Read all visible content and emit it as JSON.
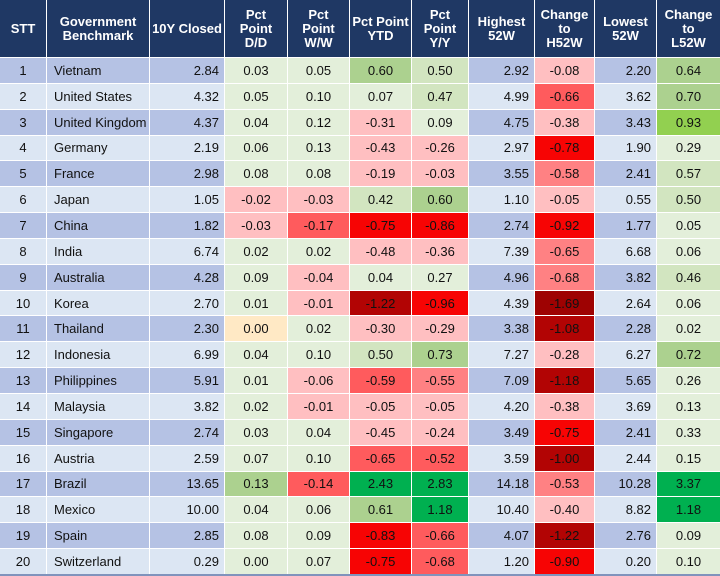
{
  "palette": {
    "header_bg": "#1F3864",
    "header_text": "#FFFFFF",
    "row_odd": "#B5C2E4",
    "row_even": "#DCE6F3",
    "grid": "#FFFFFF",
    "g0": "#E3EFDA",
    "g1": "#D2E5C0",
    "g2": "#ACD18F",
    "g3": "#92D050",
    "g4": "#00B050",
    "yl": "#FFE9C5",
    "r0": "#FFBFC1",
    "r1": "#FF8183",
    "r2": "#FF5B5D",
    "r3": "#F70404",
    "r4": "#B20404",
    "r5": "#9E0202"
  },
  "table": {
    "columns": [
      {
        "key": "stt",
        "label": "STT",
        "width": 47,
        "align": "ac",
        "stripe": true
      },
      {
        "key": "name",
        "label": "Government\nBenchmark",
        "width": 103,
        "align": "al",
        "stripe": true
      },
      {
        "key": "close",
        "label": "10Y Closed",
        "width": 75,
        "align": "ar",
        "stripe": true
      },
      {
        "key": "dd",
        "label": "Pct\nPoint\nD/D",
        "width": 63,
        "align": "ac",
        "stripe": false
      },
      {
        "key": "ww",
        "label": "Pct\nPoint\nW/W",
        "width": 62,
        "align": "ac",
        "stripe": false
      },
      {
        "key": "ytd",
        "label": "Pct Point\nYTD",
        "width": 62,
        "align": "ac",
        "stripe": false
      },
      {
        "key": "yy",
        "label": "Pct\nPoint\nY/Y",
        "width": 57,
        "align": "ac",
        "stripe": false
      },
      {
        "key": "high",
        "label": "Highest\n52W",
        "width": 66,
        "align": "ar",
        "stripe": true
      },
      {
        "key": "h52",
        "label": "Change\nto\nH52W",
        "width": 60,
        "align": "ac",
        "stripe": false
      },
      {
        "key": "low",
        "label": "Lowest\n52W",
        "width": 62,
        "align": "ar",
        "stripe": true
      },
      {
        "key": "l52",
        "label": "Change\nto\nL52W",
        "width": 63,
        "align": "ac",
        "stripe": false
      }
    ],
    "rows": [
      {
        "stt": "1",
        "name": "Vietnam",
        "close": "2.84",
        "dd": "0.03",
        "ww": "0.05",
        "ytd": "0.60",
        "yy": "0.50",
        "high": "2.92",
        "h52": "-0.08",
        "low": "2.20",
        "l52": "0.64",
        "colors": {
          "dd": "g0",
          "ww": "g0",
          "ytd": "g2",
          "yy": "g1",
          "h52": "r0",
          "l52": "g2"
        }
      },
      {
        "stt": "2",
        "name": "United States",
        "close": "4.32",
        "dd": "0.05",
        "ww": "0.10",
        "ytd": "0.07",
        "yy": "0.47",
        "high": "4.99",
        "h52": "-0.66",
        "low": "3.62",
        "l52": "0.70",
        "colors": {
          "dd": "g0",
          "ww": "g0",
          "ytd": "g0",
          "yy": "g1",
          "h52": "r2",
          "l52": "g2"
        }
      },
      {
        "stt": "3",
        "name": "United Kingdom",
        "close": "4.37",
        "dd": "0.04",
        "ww": "0.12",
        "ytd": "-0.31",
        "yy": "0.09",
        "high": "4.75",
        "h52": "-0.38",
        "low": "3.43",
        "l52": "0.93",
        "colors": {
          "dd": "g0",
          "ww": "g0",
          "ytd": "r0",
          "yy": "g0",
          "h52": "r0",
          "l52": "g3"
        }
      },
      {
        "stt": "4",
        "name": "Germany",
        "close": "2.19",
        "dd": "0.06",
        "ww": "0.13",
        "ytd": "-0.43",
        "yy": "-0.26",
        "high": "2.97",
        "h52": "-0.78",
        "low": "1.90",
        "l52": "0.29",
        "colors": {
          "dd": "g0",
          "ww": "g0",
          "ytd": "r0",
          "yy": "r0",
          "h52": "r3",
          "l52": "g0"
        }
      },
      {
        "stt": "5",
        "name": "France",
        "close": "2.98",
        "dd": "0.08",
        "ww": "0.08",
        "ytd": "-0.19",
        "yy": "-0.03",
        "high": "3.55",
        "h52": "-0.58",
        "low": "2.41",
        "l52": "0.57",
        "colors": {
          "dd": "g0",
          "ww": "g0",
          "ytd": "r0",
          "yy": "r0",
          "h52": "r1",
          "l52": "g1"
        }
      },
      {
        "stt": "6",
        "name": "Japan",
        "close": "1.05",
        "dd": "-0.02",
        "ww": "-0.03",
        "ytd": "0.42",
        "yy": "0.60",
        "high": "1.10",
        "h52": "-0.05",
        "low": "0.55",
        "l52": "0.50",
        "colors": {
          "dd": "r0",
          "ww": "r0",
          "ytd": "g1",
          "yy": "g2",
          "h52": "r0",
          "l52": "g1"
        }
      },
      {
        "stt": "7",
        "name": "China",
        "close": "1.82",
        "dd": "-0.03",
        "ww": "-0.17",
        "ytd": "-0.75",
        "yy": "-0.86",
        "high": "2.74",
        "h52": "-0.92",
        "low": "1.77",
        "l52": "0.05",
        "colors": {
          "dd": "r0",
          "ww": "r2",
          "ytd": "r3",
          "yy": "r3",
          "h52": "r3",
          "l52": "g0"
        }
      },
      {
        "stt": "8",
        "name": "India",
        "close": "6.74",
        "dd": "0.02",
        "ww": "0.02",
        "ytd": "-0.48",
        "yy": "-0.36",
        "high": "7.39",
        "h52": "-0.65",
        "low": "6.68",
        "l52": "0.06",
        "colors": {
          "dd": "g0",
          "ww": "g0",
          "ytd": "r0",
          "yy": "r0",
          "h52": "r1",
          "l52": "g0"
        }
      },
      {
        "stt": "9",
        "name": "Australia",
        "close": "4.28",
        "dd": "0.09",
        "ww": "-0.04",
        "ytd": "0.04",
        "yy": "0.27",
        "high": "4.96",
        "h52": "-0.68",
        "low": "3.82",
        "l52": "0.46",
        "colors": {
          "dd": "g0",
          "ww": "r0",
          "ytd": "g0",
          "yy": "g0",
          "h52": "r1",
          "l52": "g1"
        }
      },
      {
        "stt": "10",
        "name": "Korea",
        "close": "2.70",
        "dd": "0.01",
        "ww": "-0.01",
        "ytd": "-1.22",
        "yy": "-0.96",
        "high": "4.39",
        "h52": "-1.69",
        "low": "2.64",
        "l52": "0.06",
        "colors": {
          "dd": "g0",
          "ww": "r0",
          "ytd": "r4",
          "yy": "r3",
          "h52": "r5",
          "l52": "g0"
        }
      },
      {
        "stt": "11",
        "name": "Thailand",
        "close": "2.30",
        "dd": "0.00",
        "ww": "0.02",
        "ytd": "-0.30",
        "yy": "-0.29",
        "high": "3.38",
        "h52": "-1.08",
        "low": "2.28",
        "l52": "0.02",
        "colors": {
          "dd": "yl",
          "ww": "g0",
          "ytd": "r0",
          "yy": "r0",
          "h52": "r4",
          "l52": "g0"
        }
      },
      {
        "stt": "12",
        "name": "Indonesia",
        "close": "6.99",
        "dd": "0.04",
        "ww": "0.10",
        "ytd": "0.50",
        "yy": "0.73",
        "high": "7.27",
        "h52": "-0.28",
        "low": "6.27",
        "l52": "0.72",
        "colors": {
          "dd": "g0",
          "ww": "g0",
          "ytd": "g1",
          "yy": "g2",
          "h52": "r0",
          "l52": "g2"
        }
      },
      {
        "stt": "13",
        "name": "Philippines",
        "close": "5.91",
        "dd": "0.01",
        "ww": "-0.06",
        "ytd": "-0.59",
        "yy": "-0.55",
        "high": "7.09",
        "h52": "-1.18",
        "low": "5.65",
        "l52": "0.26",
        "colors": {
          "dd": "g0",
          "ww": "r0",
          "ytd": "r2",
          "yy": "r1",
          "h52": "r4",
          "l52": "g0"
        }
      },
      {
        "stt": "14",
        "name": "Malaysia",
        "close": "3.82",
        "dd": "0.02",
        "ww": "-0.01",
        "ytd": "-0.05",
        "yy": "-0.05",
        "high": "4.20",
        "h52": "-0.38",
        "low": "3.69",
        "l52": "0.13",
        "colors": {
          "dd": "g0",
          "ww": "r0",
          "ytd": "r0",
          "yy": "r0",
          "h52": "r0",
          "l52": "g0"
        }
      },
      {
        "stt": "15",
        "name": "Singapore",
        "close": "2.74",
        "dd": "0.03",
        "ww": "0.04",
        "ytd": "-0.45",
        "yy": "-0.24",
        "high": "3.49",
        "h52": "-0.75",
        "low": "2.41",
        "l52": "0.33",
        "colors": {
          "dd": "g0",
          "ww": "g0",
          "ytd": "r0",
          "yy": "r0",
          "h52": "r3",
          "l52": "g0"
        }
      },
      {
        "stt": "16",
        "name": "Austria",
        "close": "2.59",
        "dd": "0.07",
        "ww": "0.10",
        "ytd": "-0.65",
        "yy": "-0.52",
        "high": "3.59",
        "h52": "-1.00",
        "low": "2.44",
        "l52": "0.15",
        "colors": {
          "dd": "g0",
          "ww": "g0",
          "ytd": "r2",
          "yy": "r2",
          "h52": "r4",
          "l52": "g0"
        }
      },
      {
        "stt": "17",
        "name": "Brazil",
        "close": "13.65",
        "dd": "0.13",
        "ww": "-0.14",
        "ytd": "2.43",
        "yy": "2.83",
        "high": "14.18",
        "h52": "-0.53",
        "low": "10.28",
        "l52": "3.37",
        "colors": {
          "dd": "g2",
          "ww": "r2",
          "ytd": "g4",
          "yy": "g4",
          "h52": "r1",
          "l52": "g4"
        }
      },
      {
        "stt": "18",
        "name": "Mexico",
        "close": "10.00",
        "dd": "0.04",
        "ww": "0.06",
        "ytd": "0.61",
        "yy": "1.18",
        "high": "10.40",
        "h52": "-0.40",
        "low": "8.82",
        "l52": "1.18",
        "colors": {
          "dd": "g0",
          "ww": "g0",
          "ytd": "g2",
          "yy": "g4",
          "h52": "r0",
          "l52": "g4"
        }
      },
      {
        "stt": "19",
        "name": "Spain",
        "close": "2.85",
        "dd": "0.08",
        "ww": "0.09",
        "ytd": "-0.83",
        "yy": "-0.66",
        "high": "4.07",
        "h52": "-1.22",
        "low": "2.76",
        "l52": "0.09",
        "colors": {
          "dd": "g0",
          "ww": "g0",
          "ytd": "r3",
          "yy": "r2",
          "h52": "r4",
          "l52": "g0"
        }
      },
      {
        "stt": "20",
        "name": "Switzerland",
        "close": "0.29",
        "dd": "0.00",
        "ww": "0.07",
        "ytd": "-0.75",
        "yy": "-0.68",
        "high": "1.20",
        "h52": "-0.90",
        "low": "0.20",
        "l52": "0.10",
        "colors": {
          "dd": "g0",
          "ww": "g0",
          "ytd": "r3",
          "yy": "r2",
          "h52": "r3",
          "l52": "g0"
        }
      }
    ]
  }
}
